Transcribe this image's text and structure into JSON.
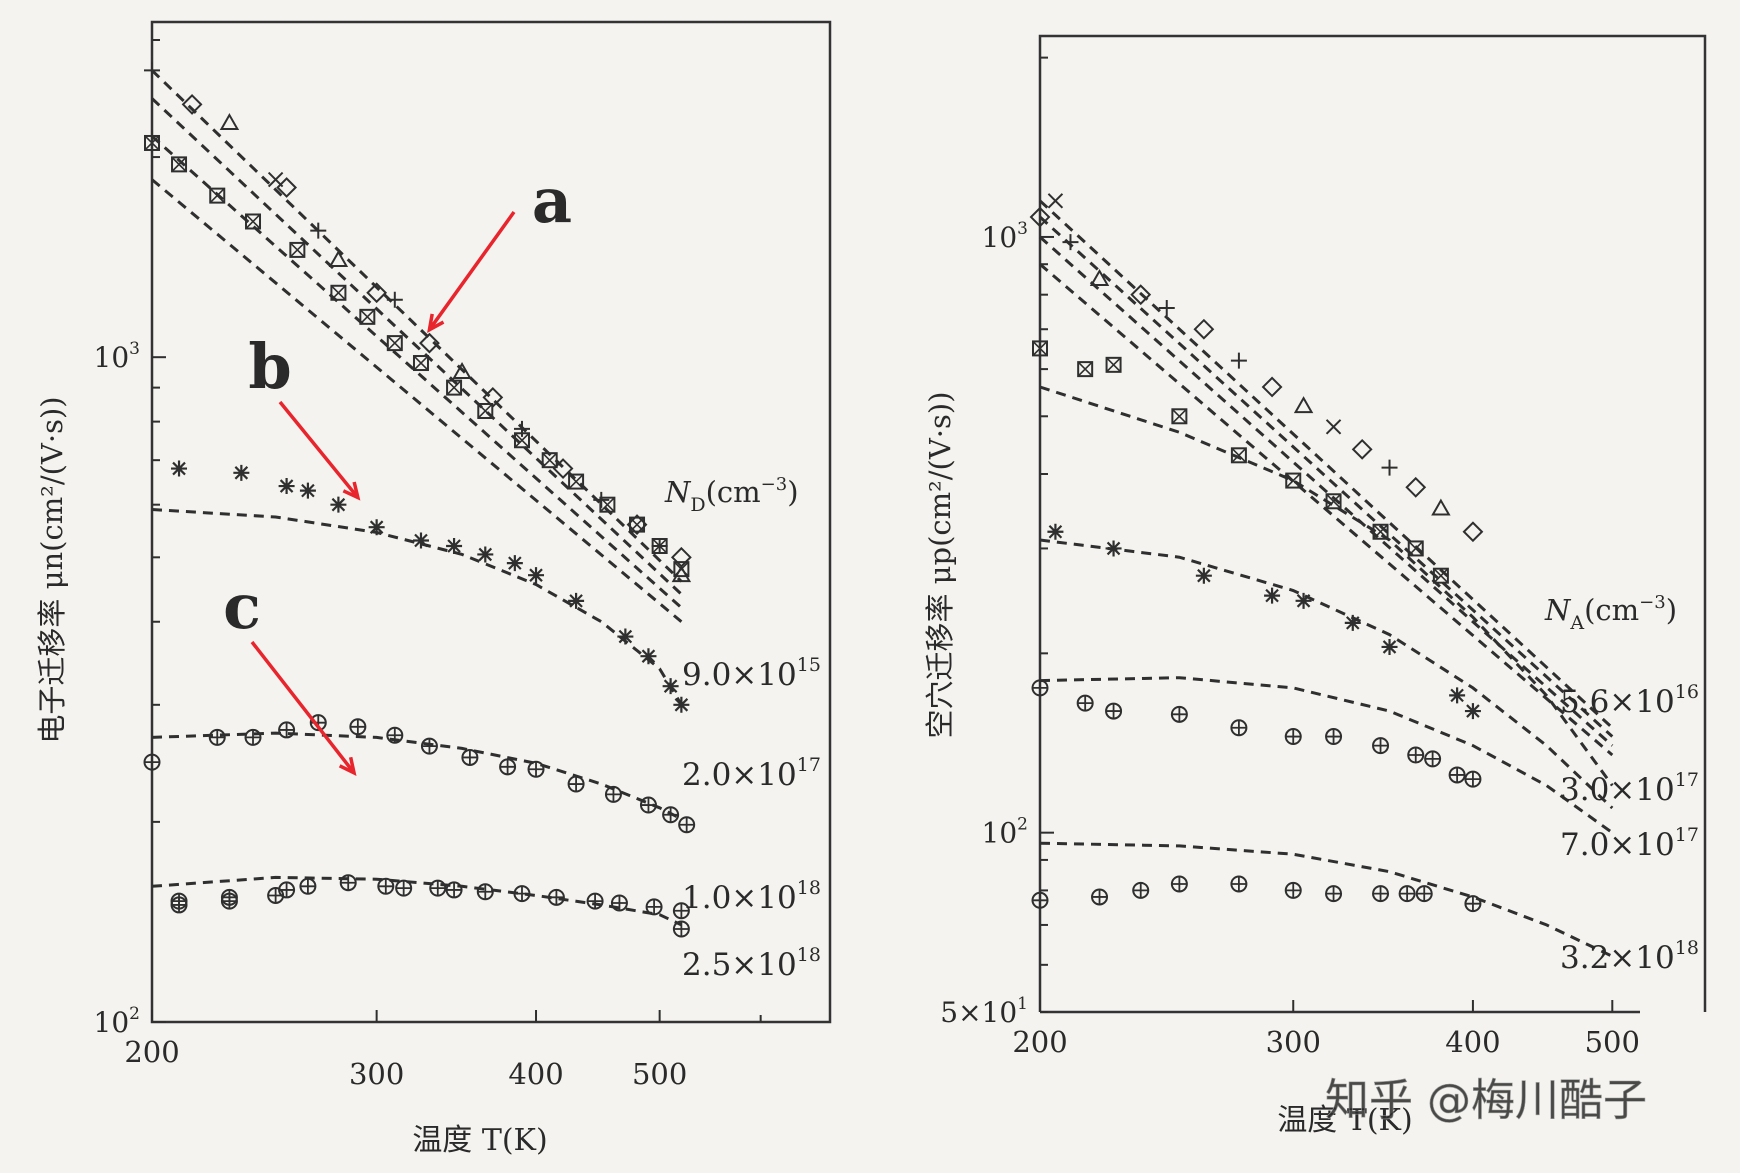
{
  "chart_data": [
    {
      "type": "scatter",
      "title": "",
      "xlabel": "温度 T(K)",
      "ylabel": "电子迁移率 μn(cm²/(V·s))",
      "xscale": "log",
      "yscale": "log",
      "xlim": [
        200,
        680
      ],
      "ylim": [
        100,
        3000
      ],
      "xticks": [
        200,
        300,
        400,
        500
      ],
      "xtick_labels": [
        "200",
        "300",
        "400",
        "500"
      ],
      "ytick_labels": [
        {
          "v": 1000,
          "base": "10",
          "exp": "3"
        },
        {
          "v": 100,
          "base": "10",
          "exp": "2"
        }
      ],
      "legend_title": {
        "sym": "N",
        "sub": "D",
        "unit": "(cm",
        "sup": "−3",
        "close": ")"
      },
      "grid": false,
      "annotations": [
        {
          "text": "a",
          "color": "#e8242c",
          "target": [
            330,
            1100
          ]
        },
        {
          "text": "b",
          "color": "#e8242c",
          "target": [
            290,
            615
          ]
        },
        {
          "text": "c",
          "color": "#e8242c",
          "target": [
            288,
            237
          ]
        }
      ],
      "series": [
        {
          "name": "a",
          "label": "",
          "marker": "mix",
          "curves": [
            [
              200,
              2700,
              520,
              460
            ],
            [
              200,
              2450,
              520,
              440
            ],
            [
              200,
              2150,
              520,
              420
            ],
            [
              200,
              1850,
              520,
              400
            ]
          ],
          "points": [
            [
              200,
              2700,
              "plus"
            ],
            [
              215,
              2400,
              "diamond"
            ],
            [
              230,
              2250,
              "tri"
            ],
            [
              250,
              1850,
              "cross"
            ],
            [
              255,
              1800,
              "diamond"
            ],
            [
              270,
              1550,
              "plus"
            ],
            [
              280,
              1400,
              "tri"
            ],
            [
              300,
              1250,
              "diamond"
            ],
            [
              310,
              1220,
              "plus"
            ],
            [
              330,
              1050,
              "diamond"
            ],
            [
              350,
              950,
              "tri"
            ],
            [
              370,
              870,
              "diamond"
            ],
            [
              390,
              780,
              "plus"
            ],
            [
              420,
              680,
              "diamond"
            ],
            [
              450,
              610,
              "plus"
            ],
            [
              480,
              560,
              "diamond"
            ],
            [
              500,
              520,
              "plus"
            ],
            [
              520,
              500,
              "diamond"
            ],
            [
              520,
              470,
              "tri"
            ]
          ]
        },
        {
          "name": "a-box",
          "label": "",
          "marker": "box",
          "points": [
            [
              200,
              2100
            ],
            [
              210,
              1950
            ],
            [
              225,
              1750
            ],
            [
              240,
              1600
            ],
            [
              260,
              1450
            ],
            [
              280,
              1250
            ],
            [
              295,
              1150
            ],
            [
              310,
              1050
            ],
            [
              325,
              980
            ],
            [
              345,
              900
            ],
            [
              365,
              830
            ],
            [
              390,
              750
            ],
            [
              410,
              700
            ],
            [
              430,
              650
            ],
            [
              455,
              600
            ],
            [
              480,
              560
            ],
            [
              500,
              520
            ],
            [
              520,
              480
            ]
          ]
        },
        {
          "name": "9.0×10^15",
          "label": {
            "mant": "9.0×10",
            "exp": "15"
          },
          "marker": "star",
          "curve": [
            [
              200,
              590
            ],
            [
              250,
              575
            ],
            [
              300,
              545
            ],
            [
              350,
              505
            ],
            [
              400,
              455
            ],
            [
              450,
              400
            ],
            [
              500,
              340
            ],
            [
              520,
              300
            ]
          ],
          "points": [
            [
              210,
              680
            ],
            [
              235,
              670
            ],
            [
              255,
              640
            ],
            [
              265,
              630
            ],
            [
              280,
              600
            ],
            [
              300,
              555
            ],
            [
              325,
              530
            ],
            [
              345,
              520
            ],
            [
              365,
              505
            ],
            [
              385,
              490
            ],
            [
              400,
              470
            ],
            [
              430,
              430
            ],
            [
              470,
              380
            ],
            [
              490,
              355
            ],
            [
              510,
              320
            ],
            [
              520,
              300
            ]
          ]
        },
        {
          "name": "2.0×10^17",
          "label": {
            "mant": "2.0×10",
            "exp": "17"
          },
          "marker": "circleplus",
          "curve": [
            [
              200,
              268
            ],
            [
              250,
              272
            ],
            [
              300,
              268
            ],
            [
              350,
              258
            ],
            [
              400,
              245
            ],
            [
              450,
              228
            ],
            [
              500,
              210
            ],
            [
              520,
              202
            ]
          ],
          "points": [
            [
              200,
              246
            ],
            [
              225,
              268
            ],
            [
              240,
              268
            ],
            [
              255,
              275
            ],
            [
              270,
              282
            ],
            [
              290,
              278
            ],
            [
              310,
              270
            ],
            [
              330,
              260
            ],
            [
              355,
              250
            ],
            [
              380,
              242
            ],
            [
              400,
              240
            ],
            [
              430,
              228
            ],
            [
              460,
              220
            ],
            [
              490,
              212
            ],
            [
              510,
              205
            ],
            [
              525,
              198
            ]
          ]
        },
        {
          "name": "1.0×10^18",
          "label": {
            "mant": "1.0×10",
            "exp": "18"
          },
          "marker": "circleplus",
          "curve": [
            [
              200,
              160
            ],
            [
              250,
              165
            ],
            [
              300,
              164
            ],
            [
              350,
              160
            ],
            [
              400,
              155
            ],
            [
              450,
              150
            ],
            [
              500,
              145
            ],
            [
              520,
              140
            ]
          ],
          "points": [
            [
              210,
              150
            ],
            [
              230,
              152
            ],
            [
              255,
              158
            ],
            [
              265,
              160
            ],
            [
              285,
              162
            ],
            [
              305,
              160
            ],
            [
              315,
              159
            ],
            [
              335,
              159
            ],
            [
              345,
              158
            ],
            [
              365,
              157
            ],
            [
              390,
              156
            ],
            [
              415,
              154
            ],
            [
              445,
              152
            ],
            [
              465,
              151
            ],
            [
              495,
              149
            ],
            [
              520,
              147
            ]
          ]
        },
        {
          "name": "2.5×10^18",
          "label": {
            "mant": "2.5×10",
            "exp": "18"
          },
          "marker": "circleplus",
          "points": [
            [
              210,
              152
            ],
            [
              230,
              154
            ],
            [
              250,
              155
            ],
            [
              520,
              138
            ]
          ]
        }
      ]
    },
    {
      "type": "scatter",
      "title": "",
      "xlabel": "温度 T(K)",
      "ylabel": "空穴迁移率 μp(cm²/(V·s))",
      "xscale": "log",
      "yscale": "log",
      "xlim": [
        200,
        580
      ],
      "ylim": [
        50,
        2100
      ],
      "xticks": [
        200,
        300,
        400,
        500
      ],
      "xtick_labels": [
        "200",
        "300",
        "400",
        "500"
      ],
      "ytick_labels": [
        {
          "v": 1000,
          "base": "10",
          "exp": "3"
        },
        {
          "v": 100,
          "base": "10",
          "exp": "2"
        },
        {
          "v": 50,
          "base": "5×10",
          "exp": "1"
        }
      ],
      "legend_title": {
        "sym": "N",
        "sub": "A",
        "unit": "(cm",
        "sup": "−3",
        "close": ")"
      },
      "grid": false,
      "series": [
        {
          "name": "5.6×10^16",
          "label": {
            "mant": "5.6×10",
            "exp": "16"
          },
          "marker": "mix",
          "curves": [
            [
              200,
              1150,
              500,
              150
            ],
            [
              200,
              1080,
              500,
              145
            ],
            [
              200,
              1000,
              500,
              140
            ],
            [
              200,
              900,
              500,
              135
            ]
          ],
          "points": [
            [
              200,
              1080,
              "diamond"
            ],
            [
              205,
              1150,
              "cross"
            ],
            [
              210,
              980,
              "plus"
            ],
            [
              220,
              850,
              "tri"
            ],
            [
              235,
              800,
              "diamond"
            ],
            [
              245,
              760,
              "plus"
            ],
            [
              260,
              700,
              "diamond"
            ],
            [
              275,
              620,
              "plus"
            ],
            [
              290,
              560,
              "diamond"
            ],
            [
              305,
              520,
              "tri"
            ],
            [
              320,
              480,
              "cross"
            ],
            [
              335,
              440,
              "diamond"
            ],
            [
              350,
              410,
              "plus"
            ],
            [
              365,
              380,
              "diamond"
            ],
            [
              380,
              350,
              "tri"
            ],
            [
              400,
              320,
              "diamond"
            ]
          ]
        },
        {
          "name": "3.0×10^17",
          "label": {
            "mant": "3.0×10",
            "exp": "17"
          },
          "marker": "box",
          "curve": [
            [
              200,
              560
            ],
            [
              250,
              470
            ],
            [
              300,
              390
            ],
            [
              350,
              310
            ],
            [
              400,
              230
            ],
            [
              450,
              170
            ],
            [
              500,
              120
            ]
          ],
          "points": [
            [
              200,
              650
            ],
            [
              215,
              600
            ],
            [
              225,
              610
            ],
            [
              250,
              500
            ],
            [
              275,
              430
            ],
            [
              300,
              390
            ],
            [
              320,
              360
            ],
            [
              345,
              320
            ],
            [
              365,
              300
            ],
            [
              380,
              270
            ]
          ]
        },
        {
          "name": "7.0×10^17",
          "label": {
            "mant": "7.0×10",
            "exp": "17"
          },
          "marker": "star",
          "curve": [
            [
              200,
              310
            ],
            [
              250,
              290
            ],
            [
              300,
              255
            ],
            [
              350,
              215
            ],
            [
              400,
              175
            ],
            [
              450,
              140
            ],
            [
              500,
              110
            ]
          ],
          "points": [
            [
              205,
              320
            ],
            [
              225,
              300
            ],
            [
              260,
              270
            ],
            [
              290,
              250
            ],
            [
              305,
              245
            ],
            [
              330,
              225
            ],
            [
              350,
              205
            ],
            [
              390,
              170
            ],
            [
              400,
              160
            ]
          ]
        },
        {
          "name": "3.2×10^18",
          "label": {
            "mant": "3.2×10",
            "exp": "18"
          },
          "marker": "circleplus",
          "curve": [
            [
              200,
              180
            ],
            [
              250,
              182
            ],
            [
              300,
              175
            ],
            [
              350,
              160
            ],
            [
              400,
              140
            ],
            [
              450,
              120
            ],
            [
              500,
              100
            ]
          ],
          "points": [
            [
              200,
              175
            ],
            [
              215,
              165
            ],
            [
              225,
              160
            ],
            [
              250,
              158
            ],
            [
              275,
              150
            ],
            [
              300,
              145
            ],
            [
              320,
              145
            ],
            [
              345,
              140
            ],
            [
              365,
              135
            ],
            [
              375,
              133
            ],
            [
              390,
              125
            ],
            [
              400,
              123
            ]
          ]
        },
        {
          "name": "3.2×10^18-b",
          "label": "",
          "marker": "circleplus",
          "curve": [
            [
              200,
              96
            ],
            [
              250,
              95
            ],
            [
              300,
              92
            ],
            [
              350,
              86
            ],
            [
              400,
              78
            ],
            [
              450,
              70
            ],
            [
              500,
              62
            ]
          ],
          "points": [
            [
              200,
              77
            ],
            [
              220,
              78
            ],
            [
              235,
              80
            ],
            [
              250,
              82
            ],
            [
              275,
              82
            ],
            [
              300,
              80
            ],
            [
              320,
              79
            ],
            [
              345,
              79
            ],
            [
              360,
              79
            ],
            [
              370,
              79
            ],
            [
              400,
              76
            ]
          ]
        }
      ]
    }
  ],
  "watermark": "知乎 @梅川酷子",
  "colors": {
    "paper": "#f4f3ef",
    "ink": "#2f2f2f",
    "annotation": "#e8242c"
  }
}
